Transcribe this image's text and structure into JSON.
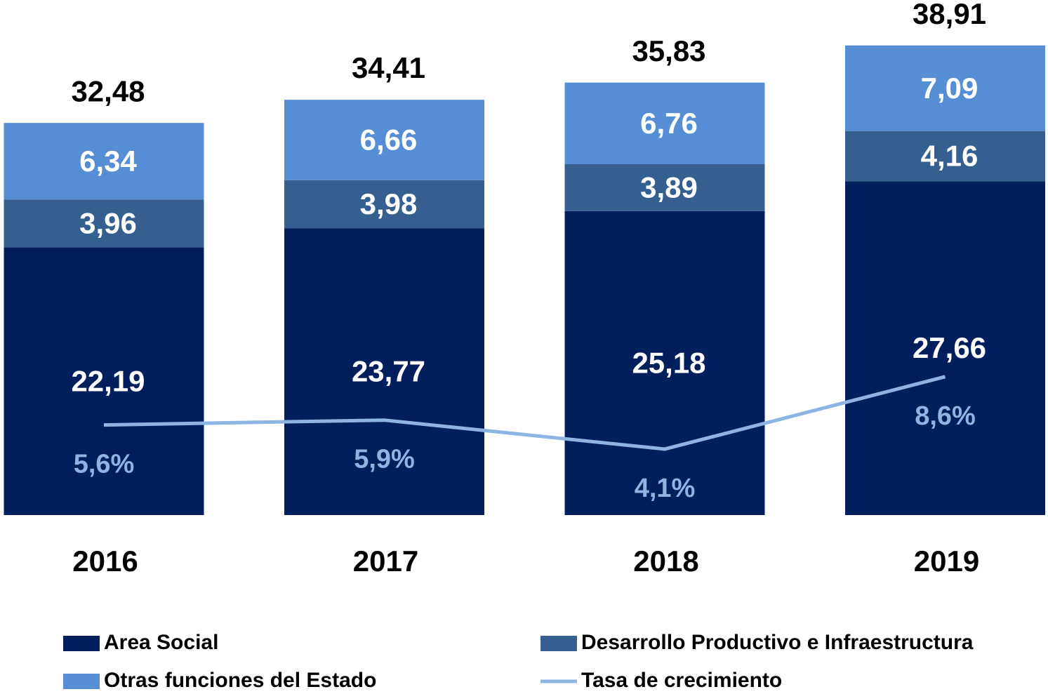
{
  "chart_data": {
    "type": "bar",
    "stacked": true,
    "categories": [
      "2016",
      "2017",
      "2018",
      "2019"
    ],
    "series": [
      {
        "name": "Area Social",
        "color": "#001f5c",
        "values": [
          22.19,
          23.77,
          25.18,
          27.66
        ],
        "value_labels": [
          "22,19",
          "23,77",
          "25,18",
          "27,66"
        ]
      },
      {
        "name": "Desarrollo Productivo e Infraestructura",
        "color": "#365f91",
        "values": [
          3.96,
          3.98,
          3.89,
          4.16
        ],
        "value_labels": [
          "3,96",
          "3,98",
          "3,89",
          "4,16"
        ]
      },
      {
        "name": "Otras funciones del Estado",
        "color": "#558ed5",
        "values": [
          6.34,
          6.66,
          6.76,
          7.09
        ],
        "value_labels": [
          "6,34",
          "6,66",
          "6,76",
          "7,09"
        ]
      },
      {
        "name": "Tasa de crecimiento",
        "type": "line",
        "axis": "y2",
        "color": "#8eb4e3",
        "values": [
          5.6,
          5.9,
          4.1,
          8.6
        ],
        "value_labels": [
          "5,6%",
          "5,9%",
          "4,1%",
          "8,6%"
        ]
      }
    ],
    "totals": [
      32.48,
      34.41,
      35.83,
      38.91
    ],
    "total_labels": [
      "32,48",
      "34,41",
      "35,83",
      "38,91"
    ],
    "ylim": [
      0,
      40
    ],
    "y2lim": [
      0,
      30
    ]
  }
}
